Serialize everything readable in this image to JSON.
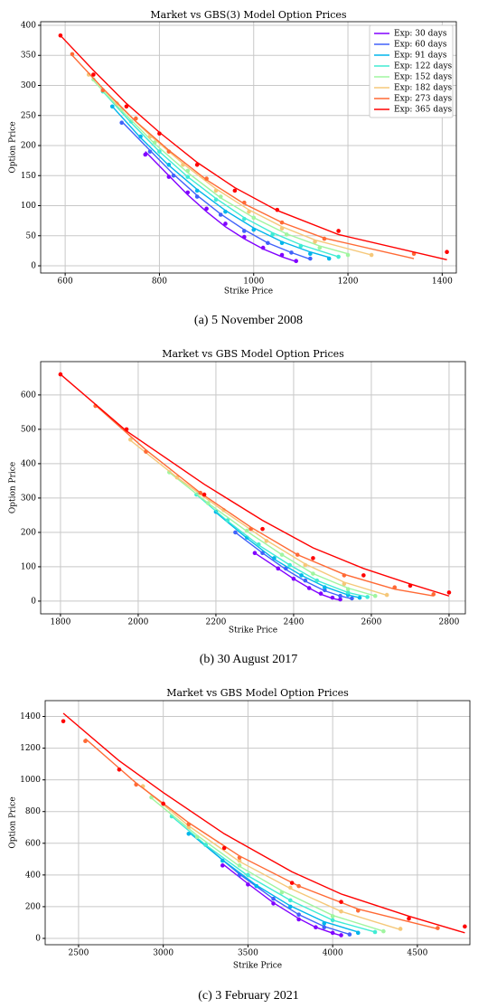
{
  "chart_data": [
    {
      "type": "line",
      "title": "Market vs GBS(3) Model Option Prices",
      "xlabel": "Strike Price",
      "ylabel": "Option Price",
      "caption": "(a) 5 November 2008",
      "xlim": [
        548,
        1430
      ],
      "ylim": [
        -12,
        406
      ],
      "xticks": [
        600,
        800,
        1000,
        1200,
        1400
      ],
      "yticks": [
        0,
        50,
        100,
        150,
        200,
        250,
        300,
        350,
        400
      ],
      "grid": true,
      "legend": "upper right",
      "series": [
        {
          "name": "Exp: 30 days",
          "color": "#8000ff",
          "x": [
            770,
            820,
            860,
            900,
            940,
            980,
            1020,
            1060,
            1090
          ],
          "values": [
            185,
            148,
            122,
            95,
            70,
            48,
            30,
            18,
            8
          ],
          "model": [
            190,
            150,
            118,
            90,
            65,
            45,
            28,
            15,
            7
          ]
        },
        {
          "name": "Exp: 60 days",
          "color": "#4062fa",
          "x": [
            720,
            780,
            830,
            880,
            930,
            980,
            1030,
            1080,
            1120
          ],
          "values": [
            238,
            190,
            150,
            115,
            85,
            58,
            38,
            22,
            12
          ],
          "model": [
            240,
            192,
            152,
            117,
            86,
            60,
            38,
            22,
            11
          ]
        },
        {
          "name": "Exp: 91 days",
          "color": "#00b5eb",
          "x": [
            700,
            760,
            820,
            880,
            940,
            1000,
            1060,
            1120,
            1160
          ],
          "values": [
            265,
            215,
            168,
            125,
            90,
            60,
            38,
            20,
            12
          ],
          "model": [
            265,
            213,
            167,
            127,
            92,
            63,
            40,
            23,
            14
          ]
        },
        {
          "name": "Exp: 122 days",
          "color": "#40ecd4",
          "x": [
            680,
            740,
            800,
            860,
            920,
            980,
            1040,
            1100,
            1180
          ],
          "values": [
            290,
            240,
            190,
            148,
            110,
            78,
            52,
            33,
            15
          ],
          "model": [
            290,
            238,
            190,
            148,
            112,
            80,
            55,
            35,
            15
          ]
        },
        {
          "name": "Exp: 152 days",
          "color": "#a0f5a0",
          "x": [
            660,
            720,
            790,
            860,
            930,
            1000,
            1070,
            1140,
            1200
          ],
          "values": [
            310,
            260,
            205,
            158,
            115,
            80,
            52,
            30,
            18
          ],
          "model": [
            308,
            258,
            203,
            155,
            113,
            80,
            53,
            33,
            20
          ]
        },
        {
          "name": "Exp: 182 days",
          "color": "#f5c87a",
          "x": [
            650,
            710,
            780,
            850,
            920,
            990,
            1060,
            1130,
            1250
          ],
          "values": [
            318,
            270,
            215,
            168,
            125,
            90,
            62,
            40,
            18
          ],
          "model": [
            320,
            270,
            217,
            170,
            128,
            93,
            65,
            43,
            18
          ]
        },
        {
          "name": "Exp: 273 days",
          "color": "#ff6a35",
          "x": [
            615,
            680,
            750,
            820,
            900,
            980,
            1060,
            1150,
            1340
          ],
          "values": [
            352,
            292,
            245,
            190,
            145,
            105,
            72,
            45,
            20
          ],
          "model": [
            350,
            295,
            240,
            192,
            143,
            103,
            72,
            46,
            12
          ]
        },
        {
          "name": "Exp: 365 days",
          "color": "#ff0000",
          "x": [
            590,
            660,
            730,
            800,
            880,
            960,
            1050,
            1180,
            1410
          ],
          "values": [
            383,
            318,
            265,
            220,
            168,
            125,
            93,
            58,
            23
          ],
          "model": [
            383,
            325,
            270,
            222,
            172,
            130,
            92,
            52,
            10
          ]
        }
      ]
    },
    {
      "type": "line",
      "title": "Market vs GBS Model Option Prices",
      "xlabel": "Strike Price",
      "ylabel": "Option Price",
      "caption": "(b) 30 August 2017",
      "xlim": [
        1749,
        2842
      ],
      "ylim": [
        -37,
        697
      ],
      "xticks": [
        1800,
        2000,
        2200,
        2400,
        2600,
        2800
      ],
      "yticks": [
        0,
        100,
        200,
        300,
        400,
        500,
        600
      ],
      "grid": true,
      "series": [
        {
          "color": "#8000ff",
          "x": [
            2300,
            2360,
            2400,
            2440,
            2470,
            2500,
            2520
          ],
          "values": [
            140,
            95,
            65,
            38,
            22,
            10,
            5
          ],
          "model": [
            140,
            95,
            65,
            38,
            20,
            8,
            3
          ]
        },
        {
          "color": "#4062fa",
          "x": [
            2250,
            2320,
            2380,
            2430,
            2480,
            2520,
            2550
          ],
          "values": [
            200,
            140,
            95,
            60,
            32,
            15,
            8
          ],
          "model": [
            200,
            140,
            92,
            58,
            30,
            15,
            7
          ]
        },
        {
          "color": "#00b5eb",
          "x": [
            2200,
            2280,
            2350,
            2420,
            2480,
            2540,
            2570
          ],
          "values": [
            260,
            185,
            125,
            75,
            40,
            18,
            10
          ],
          "model": [
            258,
            183,
            122,
            75,
            42,
            18,
            10
          ]
        },
        {
          "color": "#40ecd4",
          "x": [
            2150,
            2230,
            2310,
            2390,
            2460,
            2540,
            2590
          ],
          "values": [
            310,
            235,
            165,
            105,
            60,
            25,
            12
          ],
          "model": [
            310,
            233,
            163,
            105,
            60,
            25,
            12
          ]
        },
        {
          "color": "#a0f5a0",
          "x": [
            2080,
            2180,
            2280,
            2370,
            2450,
            2540,
            2610
          ],
          "values": [
            375,
            285,
            205,
            135,
            80,
            35,
            15
          ],
          "model": [
            375,
            285,
            203,
            135,
            80,
            38,
            15
          ]
        },
        {
          "color": "#f5c87a",
          "x": [
            1980,
            2100,
            2220,
            2330,
            2430,
            2530,
            2640
          ],
          "values": [
            470,
            360,
            265,
            175,
            105,
            50,
            18
          ],
          "model": [
            468,
            360,
            262,
            177,
            108,
            55,
            17
          ]
        },
        {
          "color": "#ff6a35",
          "x": [
            1890,
            2020,
            2160,
            2290,
            2410,
            2530,
            2660,
            2760
          ],
          "values": [
            568,
            435,
            315,
            210,
            135,
            75,
            40,
            20
          ],
          "model": [
            570,
            440,
            315,
            215,
            135,
            78,
            35,
            15
          ]
        },
        {
          "color": "#ff0000",
          "x": [
            1800,
            1970,
            2170,
            2320,
            2450,
            2580,
            2700,
            2800
          ],
          "values": [
            660,
            500,
            310,
            210,
            125,
            75,
            45,
            25
          ],
          "model": [
            660,
            495,
            340,
            235,
            155,
            95,
            50,
            15
          ]
        }
      ]
    },
    {
      "type": "line",
      "title": "Market vs GBS Model Option Prices",
      "xlabel": "Strike Price",
      "ylabel": "Option Price",
      "caption": "(c) 3 February 2021",
      "xlim": [
        2303,
        4810
      ],
      "ylim": [
        -40,
        1500
      ],
      "xticks": [
        2500,
        3000,
        3500,
        4000,
        4500
      ],
      "yticks": [
        0,
        200,
        400,
        600,
        800,
        1000,
        1200,
        1400
      ],
      "grid": true,
      "series": [
        {
          "color": "#8000ff",
          "x": [
            3350,
            3500,
            3650,
            3800,
            3900,
            4000,
            4050
          ],
          "values": [
            460,
            340,
            220,
            120,
            70,
            35,
            20
          ],
          "model": [
            470,
            345,
            225,
            125,
            70,
            33,
            18
          ]
        },
        {
          "color": "#4062fa",
          "x": [
            3250,
            3450,
            3650,
            3800,
            3950,
            4100
          ],
          "values": [
            590,
            400,
            250,
            150,
            70,
            25
          ],
          "model": [
            585,
            405,
            250,
            150,
            75,
            25
          ]
        },
        {
          "color": "#00b5eb",
          "x": [
            3150,
            3350,
            3550,
            3750,
            3950,
            4150
          ],
          "values": [
            660,
            490,
            330,
            200,
            95,
            35
          ],
          "model": [
            670,
            495,
            335,
            205,
            105,
            40
          ]
        },
        {
          "color": "#40ecd4",
          "x": [
            3050,
            3250,
            3500,
            3750,
            4000,
            4250
          ],
          "values": [
            770,
            590,
            400,
            240,
            115,
            40
          ],
          "model": [
            770,
            590,
            395,
            240,
            115,
            40
          ]
        },
        {
          "color": "#a0f5a0",
          "x": [
            2930,
            3200,
            3450,
            3700,
            4000,
            4300
          ],
          "values": [
            890,
            640,
            460,
            290,
            140,
            45
          ],
          "model": [
            885,
            650,
            455,
            300,
            145,
            45
          ]
        },
        {
          "color": "#f5c87a",
          "x": [
            2880,
            3150,
            3450,
            3750,
            4050,
            4400
          ],
          "values": [
            960,
            700,
            490,
            320,
            170,
            60
          ],
          "model": [
            950,
            710,
            485,
            315,
            170,
            55
          ]
        },
        {
          "color": "#ff6a35",
          "x": [
            2540,
            2840,
            3150,
            3450,
            3800,
            4150,
            4620
          ],
          "values": [
            1245,
            970,
            720,
            510,
            330,
            175,
            65
          ],
          "model": [
            1260,
            980,
            730,
            520,
            330,
            185,
            60
          ]
        },
        {
          "color": "#ff0000",
          "x": [
            2410,
            2740,
            3000,
            3360,
            3760,
            4050,
            4450,
            4780
          ],
          "values": [
            1370,
            1065,
            850,
            570,
            350,
            230,
            125,
            75
          ],
          "model": [
            1420,
            1120,
            920,
            660,
            420,
            280,
            140,
            35
          ]
        }
      ]
    }
  ]
}
